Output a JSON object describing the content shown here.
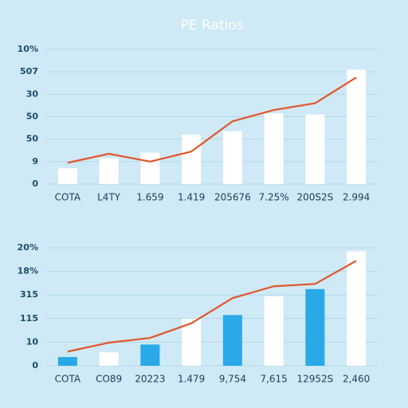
{
  "chart_data": [
    {
      "type": "bar",
      "title": "PE Ratios",
      "categories": [
        "COTA",
        "L4TY",
        "1.659",
        "1.419",
        "205676",
        "7.25%",
        "200S2S",
        "2.994"
      ],
      "bars": {
        "values": [
          0.7,
          1.15,
          1.4,
          2.2,
          2.35,
          3.15,
          3.1,
          5.1
        ],
        "colors": [
          "#ffffff",
          "#ffffff",
          "#ffffff",
          "#ffffff",
          "#ffffff",
          "#ffffff",
          "#ffffff",
          "#ffffff"
        ]
      },
      "line": {
        "values": [
          0.95,
          1.35,
          1.0,
          1.45,
          2.8,
          3.3,
          3.6,
          4.75
        ],
        "color": "#e0562a"
      },
      "ylim": [
        0,
        6
      ],
      "yticks": [
        0,
        {
          "value": 1,
          "label": "9"
        },
        {
          "value": 2,
          "label": "50"
        },
        {
          "value": 3,
          "label": "50"
        },
        {
          "value": 4,
          "label": "30"
        },
        {
          "value": 5,
          "label": "507"
        },
        {
          "value": 6,
          "label": "10%"
        }
      ],
      "grid": true
    },
    {
      "type": "bar",
      "categories": [
        "COTA",
        "CO89",
        "20223",
        "1.479",
        "9,754",
        "7,615",
        "12952S",
        "2,460"
      ],
      "bars": {
        "values": [
          0.37,
          0.57,
          0.9,
          2.0,
          2.15,
          2.95,
          3.25,
          4.85
        ],
        "colors": [
          "#29a9e8",
          "#ffffff",
          "#29a9e8",
          "#ffffff",
          "#29a9e8",
          "#ffffff",
          "#29a9e8",
          "#ffffff"
        ]
      },
      "line": {
        "values": [
          0.6,
          0.98,
          1.18,
          1.8,
          2.87,
          3.37,
          3.47,
          4.45
        ],
        "color": "#e0562a"
      },
      "ylim": [
        0,
        5
      ],
      "yticks": [
        0,
        {
          "value": 1,
          "label": "10"
        },
        {
          "value": 2,
          "label": "115"
        },
        {
          "value": 3,
          "label": "315"
        },
        {
          "value": 4,
          "label": "18%"
        },
        {
          "value": 5,
          "label": "20%"
        }
      ],
      "grid": true
    }
  ]
}
